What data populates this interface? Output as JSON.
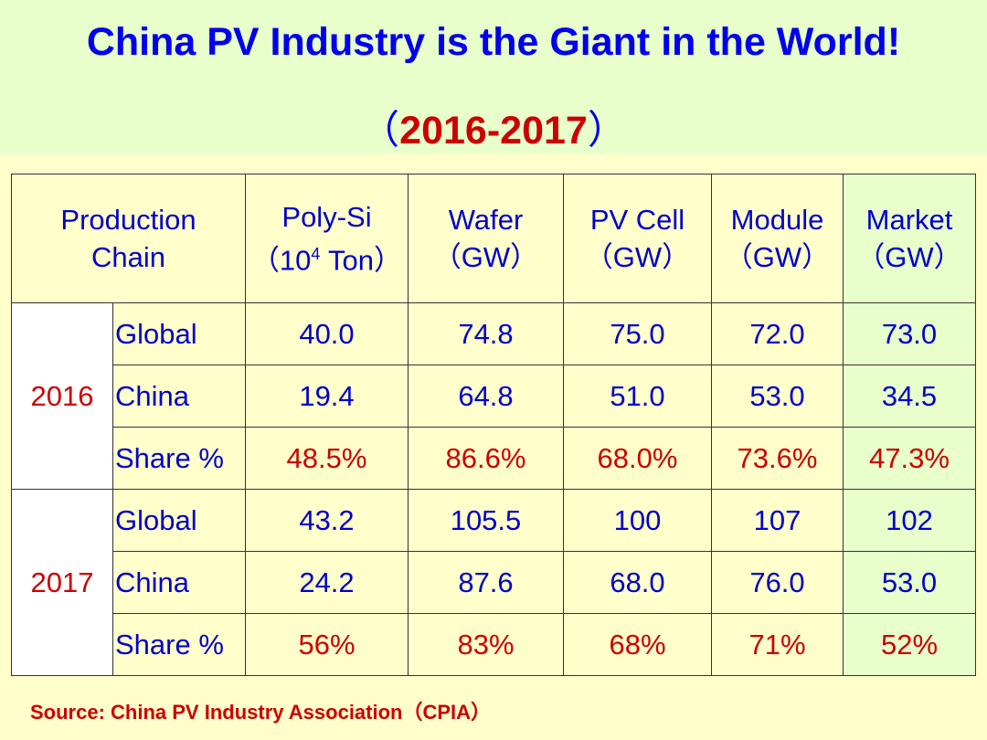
{
  "header": {
    "title": "China PV Industry is the Giant in the World!",
    "subtitle_open": "（",
    "subtitle_years": "2016-2017",
    "subtitle_close": "）"
  },
  "table": {
    "corner_line1": "Production",
    "corner_line2": "Chain",
    "columns": [
      {
        "line1": "Poly-Si",
        "line2_pre": "（10",
        "line2_sup": "4",
        "line2_post": " Ton）"
      },
      {
        "line1": "Wafer",
        "line2": "（GW）"
      },
      {
        "line1": "PV Cell",
        "line2": "（GW）"
      },
      {
        "line1": "Module",
        "line2": "（GW）"
      },
      {
        "line1": "Market",
        "line2": "（GW）"
      }
    ],
    "groups": [
      {
        "year": "2016",
        "rows": [
          {
            "label": "Global",
            "values": [
              "40.0",
              "74.8",
              "75.0",
              "72.0",
              "73.0"
            ]
          },
          {
            "label": "China",
            "values": [
              "19.4",
              "64.8",
              "51.0",
              "53.0",
              "34.5"
            ]
          },
          {
            "label": "Share %",
            "values": [
              "48.5%",
              "86.6%",
              "68.0%",
              "73.6%",
              "47.3%"
            ]
          }
        ]
      },
      {
        "year": "2017",
        "rows": [
          {
            "label": "Global",
            "values": [
              "43.2",
              "105.5",
              "100",
              "107",
              "102"
            ]
          },
          {
            "label": "China",
            "values": [
              "24.2",
              "87.6",
              "68.0",
              "76.0",
              "53.0"
            ]
          },
          {
            "label": "Share %",
            "values": [
              "56%",
              "83%",
              "68%",
              "71%",
              "52%"
            ]
          }
        ]
      }
    ]
  },
  "footer": {
    "source": "Source: China PV Industry Association（CPIA）"
  },
  "colors": {
    "title_blue": "#0000ee",
    "accent_red": "#cc0000",
    "background": "#ffffcc",
    "header_green": "#e8ffcc"
  }
}
